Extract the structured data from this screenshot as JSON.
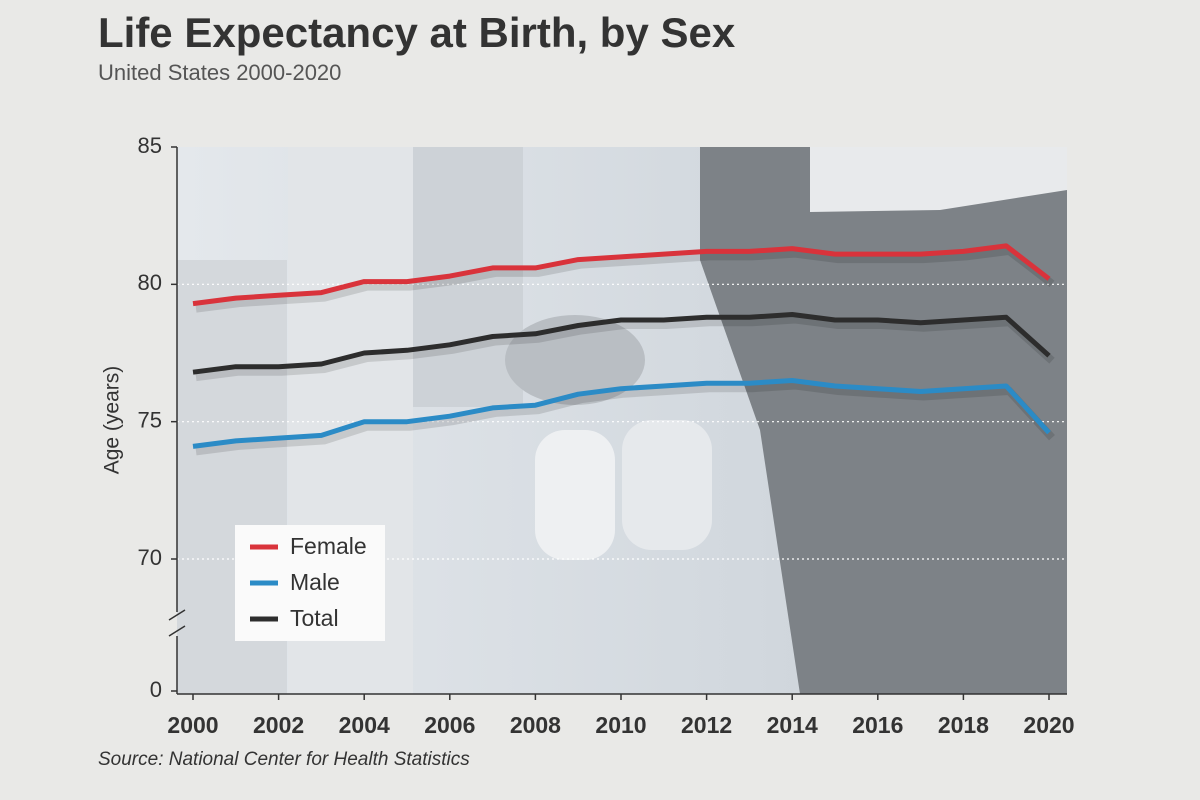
{
  "chart_data": {
    "type": "line",
    "title": "Life Expectancy at Birth, by Sex",
    "subtitle": "United States 2000-2020",
    "y_label": "Age (years)",
    "source": "Source: National Center for Health Statistics",
    "x": [
      2000,
      2001,
      2002,
      2003,
      2004,
      2005,
      2006,
      2007,
      2008,
      2009,
      2010,
      2011,
      2012,
      2013,
      2014,
      2015,
      2016,
      2017,
      2018,
      2019,
      2020
    ],
    "xlim": [
      2000,
      2020
    ],
    "xticks": [
      2000,
      2002,
      2004,
      2006,
      2008,
      2010,
      2012,
      2014,
      2016,
      2018,
      2020
    ],
    "ylim": [
      0,
      85
    ],
    "yticks": [
      0,
      70,
      75,
      80,
      85
    ],
    "y_break": [
      0,
      70
    ],
    "grid": true,
    "legend": "lower left",
    "series": [
      {
        "name": "Female",
        "color": "#d9333b",
        "values": [
          79.3,
          79.5,
          79.6,
          79.7,
          80.1,
          80.1,
          80.3,
          80.6,
          80.6,
          80.9,
          81.0,
          81.1,
          81.2,
          81.2,
          81.3,
          81.1,
          81.1,
          81.1,
          81.2,
          81.4,
          80.2
        ]
      },
      {
        "name": "Male",
        "color": "#2b8bc6",
        "values": [
          74.1,
          74.3,
          74.4,
          74.5,
          75.0,
          75.0,
          75.2,
          75.5,
          75.6,
          76.0,
          76.2,
          76.3,
          76.4,
          76.4,
          76.5,
          76.3,
          76.2,
          76.1,
          76.2,
          76.3,
          74.6
        ]
      },
      {
        "name": "Total",
        "color": "#2d2d2d",
        "values": [
          76.8,
          77.0,
          77.0,
          77.1,
          77.5,
          77.6,
          77.8,
          78.1,
          78.2,
          78.5,
          78.7,
          78.7,
          78.8,
          78.8,
          78.9,
          78.7,
          78.7,
          78.6,
          78.7,
          78.8,
          77.4
        ]
      }
    ]
  }
}
